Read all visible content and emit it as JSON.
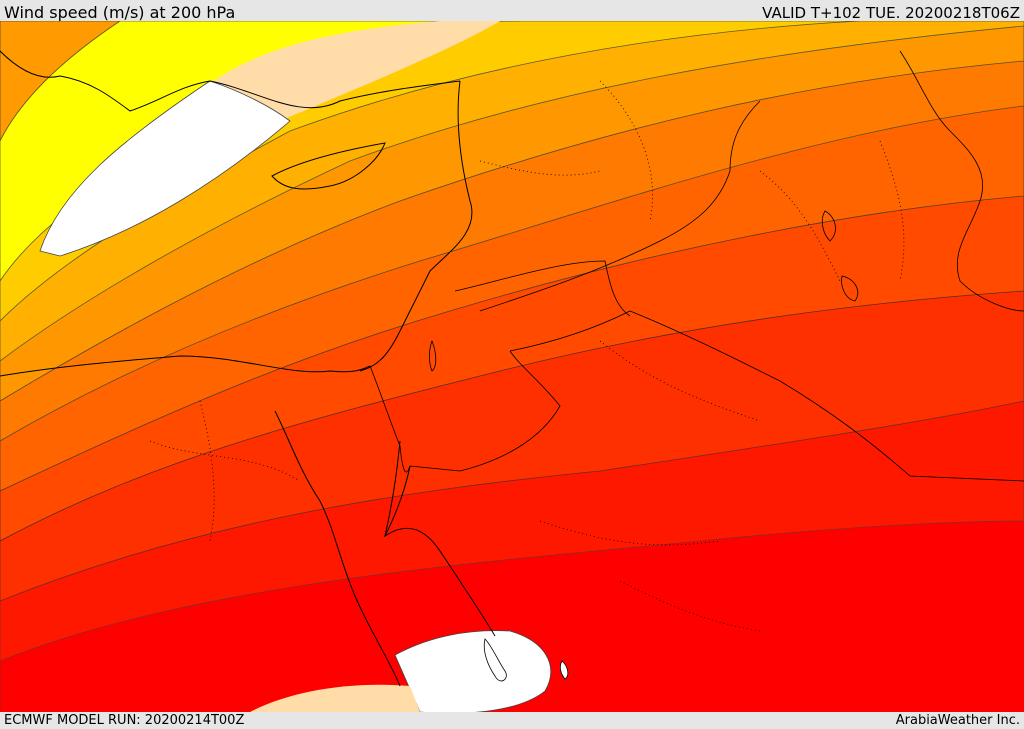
{
  "header": {
    "title": "Wind speed (m/s) at 200 hPa",
    "valid": "VALID T+102 TUE. 20200218T06Z"
  },
  "footer": {
    "model_run": "ECMWF MODEL RUN: 20200214T00Z",
    "credit": "ArabiaWeather Inc."
  },
  "map": {
    "field": "wind speed",
    "level_hpa": 200,
    "palette": [
      "#ffffff",
      "#ffdca8",
      "#ffff00",
      "#ffd200",
      "#ffb800",
      "#ff9a00",
      "#ff7800",
      "#ff5a00",
      "#ff3800",
      "#ff1800",
      "#ff0000"
    ],
    "coastline_color": "#000000",
    "border_style": "dotted"
  }
}
